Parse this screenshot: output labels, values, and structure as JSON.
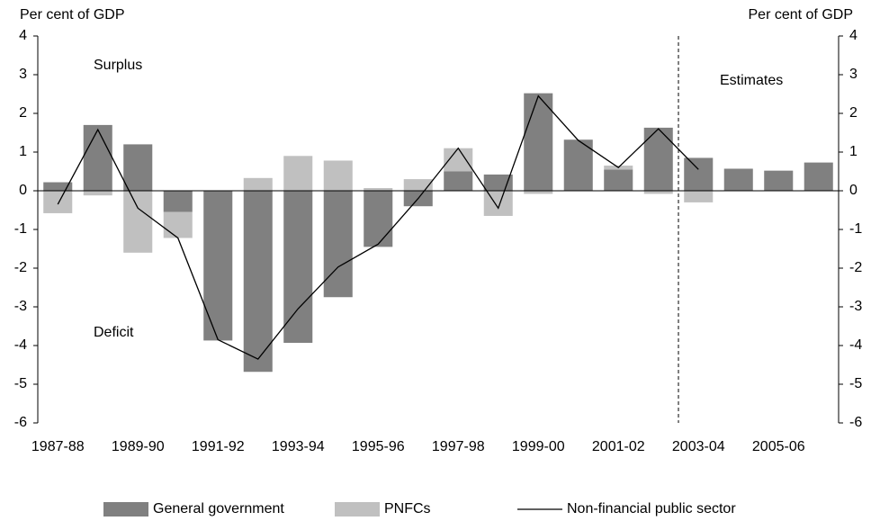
{
  "chart_data": {
    "type": "bar",
    "y_label": "Per cent of GDP",
    "y2_label": "Per cent of GDP",
    "annotations": [
      "Surplus",
      "Deficit",
      "Estimates"
    ],
    "categories": [
      "1987-88",
      null,
      "1989-90",
      null,
      "1991-92",
      null,
      "1993-94",
      null,
      "1995-96",
      null,
      "1997-98",
      null,
      "1999-00",
      null,
      "2001-02",
      null,
      "2003-04",
      null,
      "2005-06",
      null
    ],
    "series": [
      {
        "name": "General government",
        "color": "#808080",
        "kind": "bar",
        "values": [
          0.22,
          1.7,
          1.2,
          -0.55,
          -3.87,
          -4.68,
          -3.93,
          -2.75,
          -1.45,
          -0.4,
          0.5,
          0.42,
          2.52,
          1.32,
          0.55,
          1.63,
          0.85,
          0.57,
          0.52,
          0.73
        ]
      },
      {
        "name": "PNFCs",
        "color": "#c0c0c0",
        "kind": "bar",
        "values": [
          -0.58,
          -0.12,
          -1.6,
          -0.67,
          0,
          0.33,
          0.9,
          0.78,
          0.07,
          0.3,
          0.6,
          -0.65,
          -0.08,
          0,
          0.1,
          -0.08,
          -0.3,
          0,
          0,
          0
        ]
      },
      {
        "name": "Non-financial public sector",
        "color": "#000000",
        "kind": "line",
        "values": [
          -0.35,
          1.58,
          -0.45,
          -1.22,
          -3.85,
          -4.35,
          -3.05,
          -1.97,
          -1.38,
          -0.2,
          1.1,
          -0.45,
          2.45,
          1.3,
          0.6,
          1.6,
          0.55,
          null,
          null,
          null
        ]
      }
    ],
    "ylim": [
      -6,
      4
    ],
    "yticks": [
      -6,
      -5,
      -4,
      -3,
      -2,
      -1,
      0,
      1,
      2,
      3,
      4
    ],
    "y2lim": [
      -6,
      4
    ],
    "y2ticks": [
      -6,
      -5,
      -4,
      -3,
      -2,
      -1,
      0,
      1,
      2,
      3,
      4
    ]
  }
}
